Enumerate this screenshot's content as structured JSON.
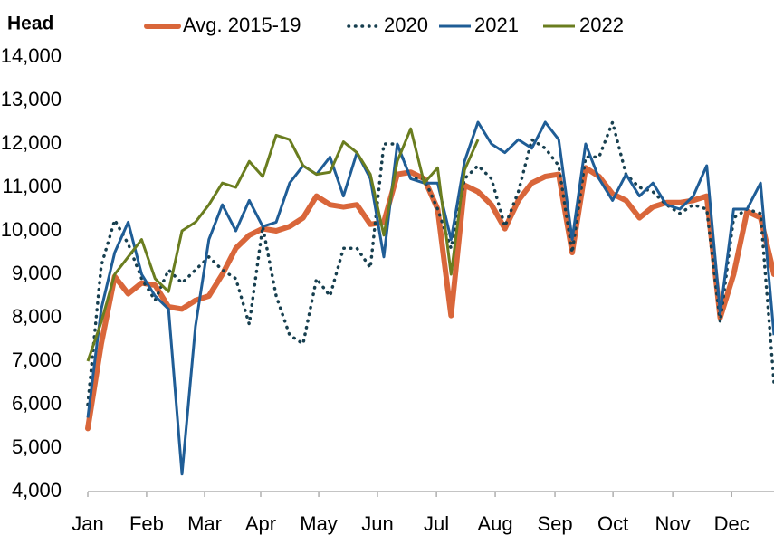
{
  "chart_data": {
    "type": "line",
    "y_label": "Head",
    "x": [
      1,
      2,
      3,
      4,
      5,
      6,
      7,
      8,
      9,
      10,
      11,
      12,
      13,
      14,
      15,
      16,
      17,
      18,
      19,
      20,
      21,
      22,
      23,
      24,
      25,
      26,
      27,
      28,
      29,
      30,
      31,
      32,
      33,
      34,
      35,
      36,
      37,
      38,
      39,
      40,
      41,
      42,
      43,
      44,
      45,
      46,
      47,
      48,
      49,
      50,
      51,
      52
    ],
    "xlim": [
      1,
      52
    ],
    "xticks": [
      {
        "value": 1,
        "label": "Jan"
      },
      {
        "value": 5.37,
        "label": "Feb"
      },
      {
        "value": 9.68,
        "label": "Mar"
      },
      {
        "value": 13.85,
        "label": "Apr"
      },
      {
        "value": 18.16,
        "label": "May"
      },
      {
        "value": 22.53,
        "label": "Jun"
      },
      {
        "value": 26.91,
        "label": "Jul"
      },
      {
        "value": 31.28,
        "label": "Aug"
      },
      {
        "value": 35.72,
        "label": "Sep"
      },
      {
        "value": 40.03,
        "label": "Oct"
      },
      {
        "value": 44.47,
        "label": "Nov"
      },
      {
        "value": 48.85,
        "label": "Dec"
      }
    ],
    "ylim": [
      4000,
      14000
    ],
    "yticks": [
      {
        "value": 4000,
        "label": "4,000"
      },
      {
        "value": 5000,
        "label": "5,000"
      },
      {
        "value": 6000,
        "label": "6,000"
      },
      {
        "value": 7000,
        "label": "7,000"
      },
      {
        "value": 8000,
        "label": "8,000"
      },
      {
        "value": 9000,
        "label": "9,000"
      },
      {
        "value": 10000,
        "label": "10,000"
      },
      {
        "value": 11000,
        "label": "11,000"
      },
      {
        "value": 12000,
        "label": "12,000"
      },
      {
        "value": 13000,
        "label": "13,000"
      },
      {
        "value": 14000,
        "label": "14,000"
      }
    ],
    "series": [
      {
        "name": "Avg. 2015-19",
        "color": "#d9663a",
        "style": "thick",
        "values": [
          5450,
          7400,
          8950,
          8550,
          8800,
          8750,
          8250,
          8200,
          8400,
          8500,
          9000,
          9600,
          9900,
          10050,
          10000,
          10100,
          10300,
          10800,
          10600,
          10550,
          10600,
          10150,
          10200,
          11300,
          11350,
          11200,
          10500,
          8050,
          11050,
          10900,
          10600,
          10050,
          10700,
          11100,
          11250,
          11300,
          9500,
          11450,
          11250,
          10850,
          10700,
          10300,
          10550,
          10650,
          10650,
          10700,
          10800,
          8000,
          9000,
          10450,
          10300,
          9000
        ]
      },
      {
        "name": "2020",
        "color": "#173f4f",
        "style": "dotted",
        "values": [
          6000,
          9200,
          10250,
          9700,
          8900,
          8400,
          9100,
          8800,
          9100,
          9400,
          9100,
          8900,
          7850,
          10100,
          8500,
          7600,
          7400,
          8900,
          8500,
          9600,
          9600,
          9150,
          12000,
          12000,
          11200,
          11200,
          10500,
          9600,
          11200,
          11500,
          11200,
          10100,
          10900,
          12100,
          11900,
          11500,
          9500,
          11700,
          11700,
          12500,
          11300,
          11000,
          10900,
          10600,
          10400,
          10600,
          10500,
          7900,
          10300,
          10500,
          10400,
          6500
        ]
      },
      {
        "name": "2021",
        "color": "#1f5d96",
        "style": "solid",
        "values": [
          5700,
          8200,
          9500,
          10200,
          9000,
          8500,
          8200,
          4400,
          7800,
          9800,
          10600,
          10000,
          10700,
          10100,
          10200,
          11100,
          11500,
          11300,
          11700,
          10800,
          11800,
          11200,
          9400,
          12000,
          11200,
          11100,
          11100,
          9800,
          11600,
          12500,
          12000,
          11800,
          12100,
          11900,
          12500,
          12100,
          9800,
          12000,
          11200,
          10700,
          11300,
          10800,
          11100,
          10600,
          10500,
          10800,
          11500,
          8100,
          10500,
          10500,
          11100,
          7600
        ]
      },
      {
        "name": "2022",
        "color": "#6a7d1f",
        "style": "solid",
        "values": [
          7000,
          7900,
          9000,
          9400,
          9800,
          8900,
          8600,
          10000,
          10200,
          10600,
          11100,
          11000,
          11600,
          11250,
          12200,
          12100,
          11500,
          11300,
          11350,
          12050,
          11800,
          11300,
          9900,
          11600,
          12350,
          11100,
          11450,
          9000,
          11400,
          12100,
          null,
          null,
          null,
          null,
          null,
          null,
          null,
          null,
          null,
          null,
          null,
          null,
          null,
          null,
          null,
          null,
          null,
          null,
          null,
          null,
          null,
          null
        ]
      }
    ]
  }
}
